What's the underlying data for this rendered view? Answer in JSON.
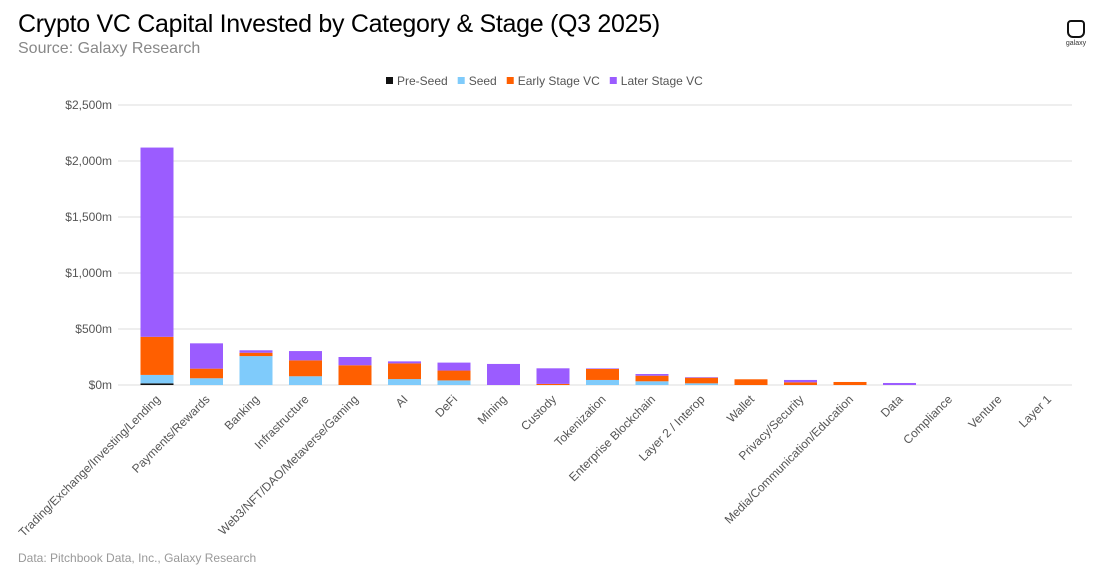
{
  "header": {
    "title": "Crypto VC Capital Invested by Category & Stage (Q3 2025)",
    "subtitle": "Source: Galaxy Research"
  },
  "footer": "Data: Pitchbook Data, Inc., Galaxy Research",
  "logo": {
    "text": "galaxy"
  },
  "chart_data": {
    "type": "bar",
    "stacked": true,
    "title": "Crypto VC Capital Invested by Category & Stage (Q3 2025)",
    "ylim": [
      0,
      2500
    ],
    "yticks": [
      0,
      500,
      1000,
      1500,
      2000,
      2500
    ],
    "ytick_labels": [
      "$0m",
      "$500m",
      "$1,000m",
      "$1,500m",
      "$2,000m",
      "$2,500m"
    ],
    "grid": true,
    "legend_position": "top",
    "categories": [
      "Trading/Exchange/Investing/Lending",
      "Payments/Rewards",
      "Banking",
      "Infrastructure",
      "Web3/NFT/DAO/Metaverse/Gaming",
      "AI",
      "DeFi",
      "Mining",
      "Custody",
      "Tokenization",
      "Enterprise Blockchain",
      "Layer 2 / Interop",
      "Wallet",
      "Privacy/Security",
      "Media/Communication/Education",
      "Data",
      "Compliance",
      "Venture",
      "Layer 1"
    ],
    "series": [
      {
        "name": "Pre-Seed",
        "color": "#111111",
        "values": [
          15,
          0,
          0,
          0,
          0,
          0,
          0,
          0,
          0,
          0,
          0,
          0,
          0,
          0,
          0,
          0,
          0,
          0,
          0
        ]
      },
      {
        "name": "Seed",
        "color": "#7fcbfb",
        "values": [
          75,
          60,
          258,
          78,
          0,
          53,
          41,
          0,
          0,
          45,
          33,
          15,
          0,
          0,
          0,
          0,
          0,
          0,
          0
        ]
      },
      {
        "name": "Early Stage VC",
        "color": "#ff5f00",
        "values": [
          340,
          86,
          30,
          142,
          176,
          140,
          88,
          0,
          10,
          98,
          50,
          50,
          51,
          24,
          27,
          0,
          0,
          0,
          0
        ]
      },
      {
        "name": "Later Stage VC",
        "color": "#9b5cff",
        "values": [
          1690,
          226,
          22,
          83,
          74,
          18,
          71,
          188,
          139,
          5,
          15,
          5,
          0,
          21,
          0,
          18,
          0,
          0,
          0
        ]
      }
    ]
  }
}
